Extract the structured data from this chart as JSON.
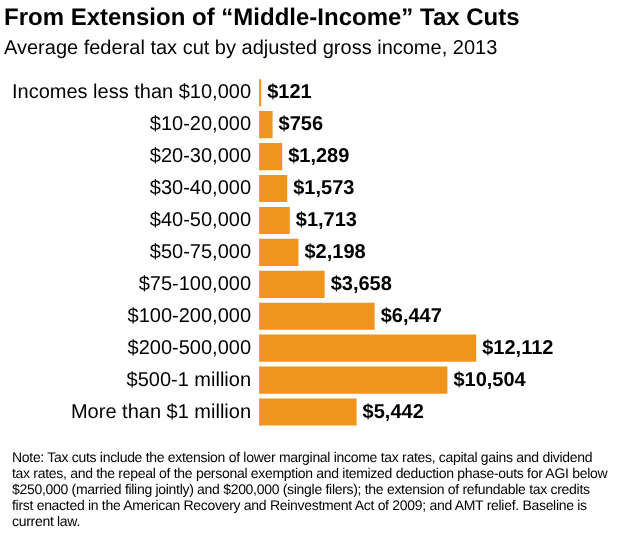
{
  "chart_data": {
    "type": "bar",
    "orientation": "horizontal",
    "title": "From Extension of “Middle-Income” Tax Cuts",
    "subtitle": "Average federal tax cut by adjusted gross income, 2013",
    "categories": [
      "Incomes less than $10,000",
      "$10-20,000",
      "$20-30,000",
      "$30-40,000",
      "$40-50,000",
      "$50-75,000",
      "$75-100,000",
      "$100-200,000",
      "$200-500,000",
      "$500-1 million",
      "More than $1 million"
    ],
    "values": [
      121,
      756,
      1289,
      1573,
      1713,
      2198,
      3658,
      6447,
      12112,
      10504,
      5442
    ],
    "value_labels": [
      "$121",
      "$756",
      "$1,289",
      "$1,573",
      "$1,713",
      "$2,198",
      "$3,658",
      "$6,447",
      "$12,112",
      "$10,504",
      "$5,442"
    ],
    "color": "#f0941e",
    "legend": false,
    "annotations": [
      "Note: Tax cuts include the extension of lower marginal income tax rates, capital gains and dividend tax rates, and the repeal of the personal exemption and itemized deduction phase-outs for AGI below $250,000 (married filing jointly) and $200,000 (single filers); the extension of refundable tax credits first enacted in the American Recovery and Reinvestment Act of 2009; and AMT relief. Baseline is current law."
    ]
  }
}
